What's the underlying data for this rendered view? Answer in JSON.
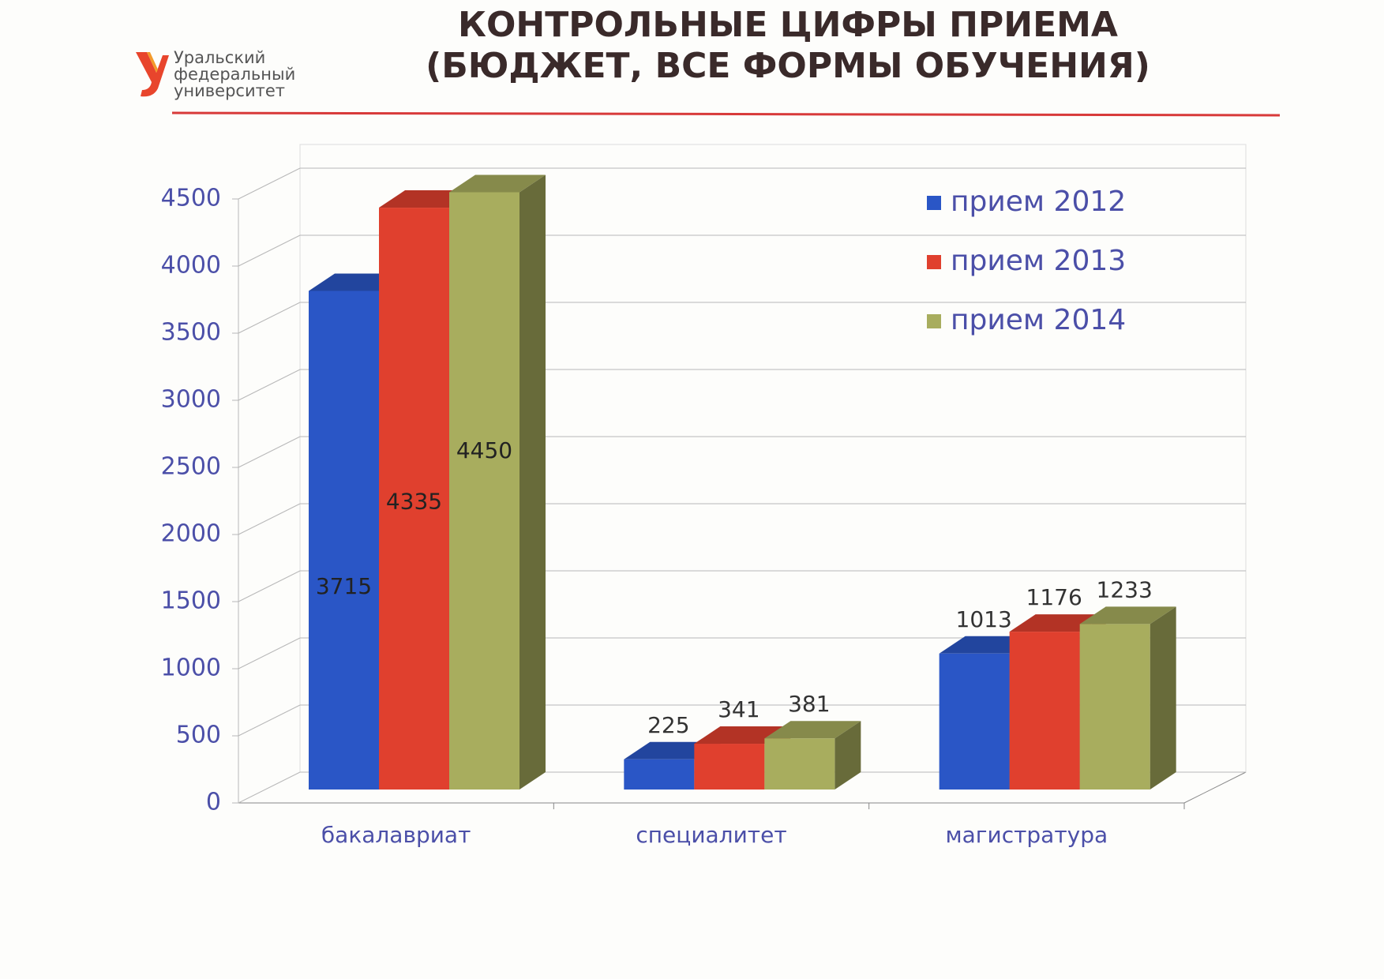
{
  "header": {
    "logo_text": [
      "Уральский",
      "федеральный",
      "университет"
    ]
  },
  "chart_data": {
    "type": "bar3d",
    "title": [
      "КОНТРОЛЬНЫЕ ЦИФРЫ ПРИЕМА",
      "(БЮДЖЕТ, ВСЕ ФОРМЫ ОБУЧЕНИЯ)"
    ],
    "categories": [
      "бакалавриат",
      "специалитет",
      "магистратура"
    ],
    "series": [
      {
        "name": "прием 2012",
        "color": "#2a56c6",
        "values": [
          3715,
          225,
          1013
        ]
      },
      {
        "name": "прием 2013",
        "color": "#e0402e",
        "values": [
          4335,
          341,
          1176
        ]
      },
      {
        "name": "прием 2014",
        "color": "#a8ad5e",
        "values": [
          4450,
          381,
          1233
        ]
      }
    ],
    "ylim": [
      0,
      4500
    ],
    "yticks": [
      0,
      500,
      1000,
      1500,
      2000,
      2500,
      3000,
      3500,
      4000,
      4500
    ],
    "grid": true,
    "legend": "top-right"
  }
}
